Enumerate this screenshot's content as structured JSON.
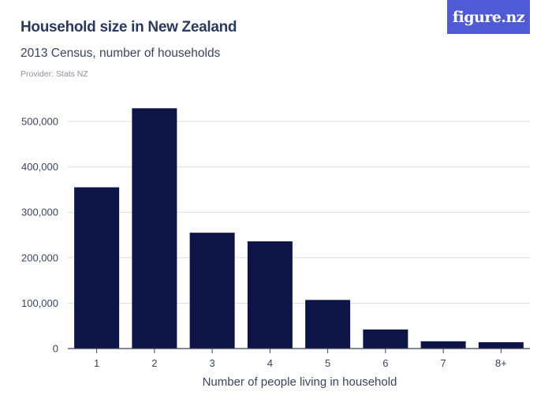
{
  "header": {
    "title": "Household size in New Zealand",
    "subtitle": "2013 Census, number of households",
    "provider": "Provider: Stats NZ",
    "logo_text": "figure.nz"
  },
  "colors": {
    "bar": "#0c1545",
    "grid": "#dcdde3",
    "axis": "#3a4460",
    "logo_bg": "#4f5bd5"
  },
  "chart_data": {
    "type": "bar",
    "title": "Household size in New Zealand",
    "subtitle": "2013 Census, number of households",
    "xlabel": "Number of people living in household",
    "ylabel": "",
    "categories": [
      "1",
      "2",
      "3",
      "4",
      "5",
      "6",
      "7",
      "8+"
    ],
    "values": [
      355000,
      529000,
      255000,
      236000,
      107000,
      42000,
      16000,
      14000
    ],
    "ylim": [
      0,
      500000
    ],
    "yticks": [
      0,
      100000,
      200000,
      300000,
      400000,
      500000
    ],
    "ytick_labels": [
      "0",
      "100,000",
      "200,000",
      "300,000",
      "400,000",
      "500,000"
    ],
    "grid": true
  }
}
